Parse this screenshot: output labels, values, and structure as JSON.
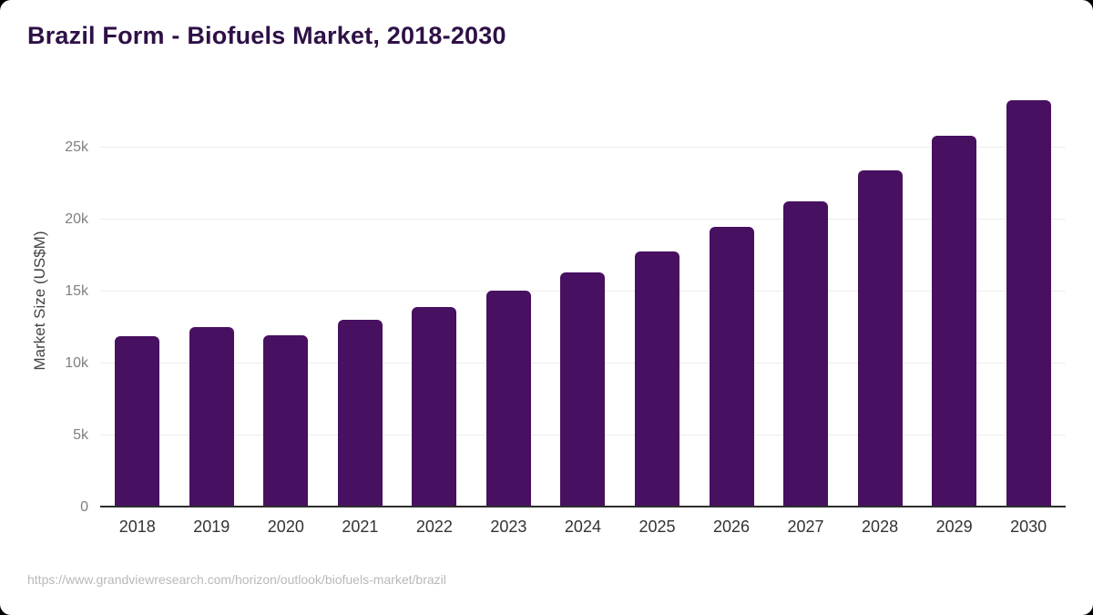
{
  "page": {
    "title": "Brazil Form - Biofuels Market, 2018-2030",
    "source_url": "https://www.grandviewresearch.com/horizon/outlook/biofuels-market/brazil"
  },
  "colors": {
    "bar": "#481060",
    "title": "#2e1047",
    "grid": "#ededed",
    "axis": "#2d2d2d",
    "y_tick": "#808080",
    "x_tick": "#333333",
    "axis_title": "#444444",
    "footer": "#b9b9b9",
    "background": "#ffffff",
    "frame": "#000000"
  },
  "chart_data": {
    "type": "bar",
    "title": "Brazil Form - Biofuels Market, 2018-2030",
    "categories": [
      "2018",
      "2019",
      "2020",
      "2021",
      "2022",
      "2023",
      "2024",
      "2025",
      "2026",
      "2027",
      "2028",
      "2029",
      "2030"
    ],
    "values": [
      11900,
      12550,
      11950,
      13000,
      13900,
      15050,
      16300,
      17800,
      19500,
      21250,
      23400,
      25800,
      28250
    ],
    "xlabel": "",
    "ylabel": "Market Size (US$M)",
    "unit": "US$M",
    "ylim": [
      0,
      28900
    ],
    "yticks": [
      {
        "value": 0,
        "label": "0"
      },
      {
        "value": 5000,
        "label": "5k"
      },
      {
        "value": 10000,
        "label": "10k"
      },
      {
        "value": 15000,
        "label": "15k"
      },
      {
        "value": 20000,
        "label": "20k"
      },
      {
        "value": 25000,
        "label": "25k"
      }
    ],
    "grid": true,
    "legend": false
  }
}
